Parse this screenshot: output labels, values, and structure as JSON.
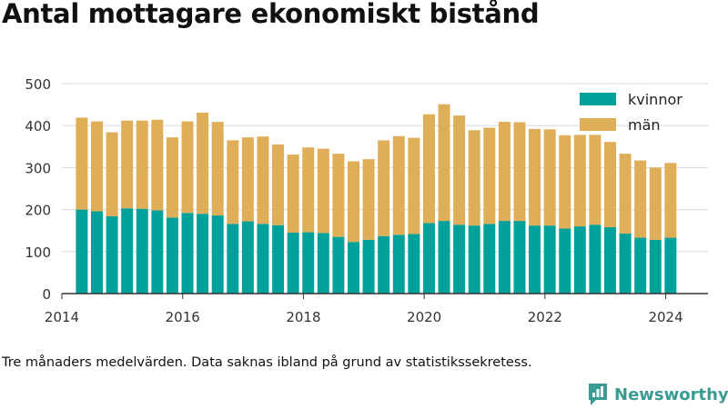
{
  "title": "Antal mottagare ekonomiskt bistånd",
  "note": "Tre månaders medelvärden. Data saknas ibland på grund av statistikssekretess.",
  "brand": {
    "name": "Newsworthy",
    "icon": "newsworthy-logo-icon",
    "color": "#3a9b93"
  },
  "colors": {
    "kvinnor": "#00a19a",
    "man": "#dfae58",
    "grid": "#d9d9d9",
    "axis": "#333333"
  },
  "chart_data": {
    "type": "bar",
    "stacked": true,
    "title": "Antal mottagare ekonomiskt bistånd",
    "xlabel": "",
    "ylabel": "",
    "ylim": [
      0,
      500
    ],
    "yticks": [
      0,
      100,
      200,
      300,
      400,
      500
    ],
    "xlim": [
      2014.0,
      2024.7
    ],
    "xticks": [
      2014,
      2016,
      2018,
      2020,
      2022,
      2024
    ],
    "grid": true,
    "legend_position": "top-right",
    "x": [
      2014.33,
      2014.58,
      2014.83,
      2015.08,
      2015.33,
      2015.58,
      2015.83,
      2016.08,
      2016.33,
      2016.58,
      2016.83,
      2017.08,
      2017.33,
      2017.58,
      2017.83,
      2018.08,
      2018.33,
      2018.58,
      2018.83,
      2019.08,
      2019.33,
      2019.58,
      2019.83,
      2020.08,
      2020.33,
      2020.58,
      2020.83,
      2021.08,
      2021.33,
      2021.58,
      2021.83,
      2022.08,
      2022.33,
      2022.58,
      2022.83,
      2023.08,
      2023.33,
      2023.58,
      2023.83,
      2024.08
    ],
    "series": [
      {
        "name": "kvinnor",
        "color": "#00a19a",
        "values": [
          200,
          196,
          184,
          203,
          202,
          198,
          181,
          192,
          190,
          186,
          166,
          172,
          166,
          163,
          145,
          146,
          144,
          135,
          123,
          128,
          137,
          140,
          142,
          168,
          173,
          164,
          162,
          166,
          173,
          173,
          162,
          162,
          155,
          160,
          164,
          158,
          143,
          133,
          128,
          133
        ]
      },
      {
        "name": "män",
        "color": "#dfae58",
        "values": [
          219,
          214,
          200,
          209,
          210,
          216,
          191,
          218,
          241,
          223,
          199,
          200,
          208,
          192,
          186,
          202,
          201,
          198,
          192,
          192,
          228,
          235,
          229,
          259,
          278,
          260,
          227,
          229,
          236,
          235,
          230,
          229,
          222,
          218,
          214,
          203,
          190,
          184,
          172,
          178
        ]
      }
    ]
  }
}
